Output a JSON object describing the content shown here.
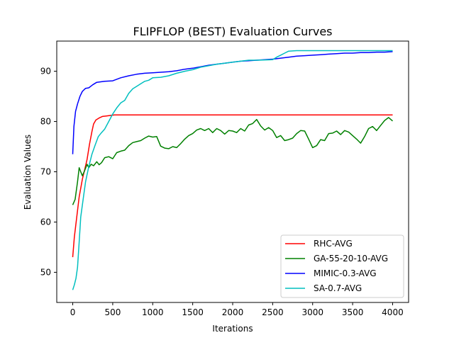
{
  "chart_data": {
    "type": "line",
    "title": "FLIPFLOP (BEST) Evaluation Curves",
    "xlabel": "Iterations",
    "ylabel": "Evaluation Values",
    "xlim": [
      -200,
      4200
    ],
    "ylim": [
      44,
      96
    ],
    "xticks": [
      0,
      500,
      1000,
      1500,
      2000,
      2500,
      3000,
      3500,
      4000
    ],
    "yticks": [
      50,
      60,
      70,
      80,
      90
    ],
    "legend_position": "bottom-right",
    "grid": false,
    "series": [
      {
        "name": "RHC-AVG",
        "color": "#ff0000",
        "points": [
          [
            0,
            53
          ],
          [
            20,
            57
          ],
          [
            50,
            61
          ],
          [
            80,
            65
          ],
          [
            120,
            68.5
          ],
          [
            150,
            70.5
          ],
          [
            180,
            72.5
          ],
          [
            210,
            75.5
          ],
          [
            240,
            78
          ],
          [
            260,
            79.5
          ],
          [
            290,
            80.3
          ],
          [
            330,
            80.7
          ],
          [
            370,
            81
          ],
          [
            420,
            81.1
          ],
          [
            470,
            81.2
          ],
          [
            520,
            81.3
          ],
          [
            4000,
            81.3
          ]
        ]
      },
      {
        "name": "GA-55-20-10-AVG",
        "color": "#008000",
        "points": [
          [
            0,
            63.4
          ],
          [
            30,
            64.5
          ],
          [
            60,
            68
          ],
          [
            80,
            70.8
          ],
          [
            100,
            70
          ],
          [
            120,
            69.2
          ],
          [
            150,
            70.3
          ],
          [
            180,
            71.5
          ],
          [
            200,
            70.8
          ],
          [
            230,
            71.5
          ],
          [
            260,
            71.2
          ],
          [
            300,
            72
          ],
          [
            330,
            71.4
          ],
          [
            360,
            71.8
          ],
          [
            400,
            72.8
          ],
          [
            450,
            73
          ],
          [
            500,
            72.6
          ],
          [
            550,
            73.8
          ],
          [
            600,
            74.1
          ],
          [
            650,
            74.3
          ],
          [
            700,
            75.2
          ],
          [
            750,
            75.8
          ],
          [
            800,
            76
          ],
          [
            850,
            76.2
          ],
          [
            900,
            76.7
          ],
          [
            950,
            77.1
          ],
          [
            1000,
            76.9
          ],
          [
            1050,
            77
          ],
          [
            1100,
            75.1
          ],
          [
            1150,
            74.7
          ],
          [
            1200,
            74.6
          ],
          [
            1250,
            75
          ],
          [
            1300,
            74.8
          ],
          [
            1350,
            75.6
          ],
          [
            1400,
            76.5
          ],
          [
            1450,
            77.2
          ],
          [
            1500,
            77.6
          ],
          [
            1550,
            78.3
          ],
          [
            1600,
            78.6
          ],
          [
            1650,
            78.2
          ],
          [
            1700,
            78.6
          ],
          [
            1750,
            77.8
          ],
          [
            1800,
            78.6
          ],
          [
            1850,
            78.2
          ],
          [
            1900,
            77.5
          ],
          [
            1950,
            78.2
          ],
          [
            2000,
            78.1
          ],
          [
            2050,
            77.8
          ],
          [
            2100,
            78.6
          ],
          [
            2150,
            78.1
          ],
          [
            2200,
            79.3
          ],
          [
            2250,
            79.6
          ],
          [
            2300,
            80.4
          ],
          [
            2350,
            79.1
          ],
          [
            2400,
            78.3
          ],
          [
            2450,
            78.8
          ],
          [
            2500,
            78.2
          ],
          [
            2550,
            76.8
          ],
          [
            2600,
            77.2
          ],
          [
            2650,
            76.2
          ],
          [
            2700,
            76.4
          ],
          [
            2750,
            76.7
          ],
          [
            2800,
            77.6
          ],
          [
            2850,
            78.2
          ],
          [
            2900,
            78.1
          ],
          [
            2950,
            76.5
          ],
          [
            3000,
            74.8
          ],
          [
            3050,
            75.2
          ],
          [
            3100,
            76.4
          ],
          [
            3150,
            76.2
          ],
          [
            3200,
            77.6
          ],
          [
            3250,
            77.7
          ],
          [
            3300,
            78.1
          ],
          [
            3350,
            77.4
          ],
          [
            3400,
            78.2
          ],
          [
            3450,
            77.9
          ],
          [
            3500,
            77.2
          ],
          [
            3550,
            76.5
          ],
          [
            3600,
            75.7
          ],
          [
            3650,
            77
          ],
          [
            3700,
            78.6
          ],
          [
            3750,
            79
          ],
          [
            3800,
            78.2
          ],
          [
            3850,
            79.2
          ],
          [
            3900,
            80.2
          ],
          [
            3950,
            80.8
          ],
          [
            4000,
            80.1
          ]
        ]
      },
      {
        "name": "MIMIC-0.3-AVG",
        "color": "#0000ff",
        "points": [
          [
            0,
            73.5
          ],
          [
            15,
            79
          ],
          [
            35,
            82
          ],
          [
            60,
            83.5
          ],
          [
            90,
            85
          ],
          [
            120,
            86
          ],
          [
            160,
            86.6
          ],
          [
            200,
            86.7
          ],
          [
            250,
            87.3
          ],
          [
            300,
            87.8
          ],
          [
            350,
            87.9
          ],
          [
            400,
            88
          ],
          [
            500,
            88.1
          ],
          [
            600,
            88.7
          ],
          [
            700,
            89.1
          ],
          [
            800,
            89.4
          ],
          [
            900,
            89.6
          ],
          [
            1000,
            89.7
          ],
          [
            1100,
            89.8
          ],
          [
            1200,
            89.9
          ],
          [
            1300,
            90.1
          ],
          [
            1400,
            90.4
          ],
          [
            1500,
            90.6
          ],
          [
            1600,
            90.9
          ],
          [
            1700,
            91.2
          ],
          [
            1800,
            91.4
          ],
          [
            1900,
            91.6
          ],
          [
            2000,
            91.8
          ],
          [
            2100,
            92
          ],
          [
            2200,
            92.1
          ],
          [
            2300,
            92.2
          ],
          [
            2400,
            92.3
          ],
          [
            2500,
            92.4
          ],
          [
            2600,
            92.6
          ],
          [
            2700,
            92.8
          ],
          [
            2800,
            93
          ],
          [
            2900,
            93.1
          ],
          [
            3000,
            93.2
          ],
          [
            3100,
            93.3
          ],
          [
            3200,
            93.4
          ],
          [
            3300,
            93.5
          ],
          [
            3400,
            93.6
          ],
          [
            3500,
            93.6
          ],
          [
            3600,
            93.7
          ],
          [
            3700,
            93.7
          ],
          [
            3800,
            93.8
          ],
          [
            3900,
            93.8
          ],
          [
            4000,
            93.9
          ]
        ]
      },
      {
        "name": "SA-0.7-AVG",
        "color": "#00bfbf",
        "points": [
          [
            0,
            46.5
          ],
          [
            20,
            47.5
          ],
          [
            40,
            48.8
          ],
          [
            60,
            51
          ],
          [
            80,
            56
          ],
          [
            100,
            61
          ],
          [
            130,
            64.5
          ],
          [
            160,
            68
          ],
          [
            200,
            71
          ],
          [
            240,
            73.5
          ],
          [
            280,
            75.3
          ],
          [
            320,
            77
          ],
          [
            360,
            77.8
          ],
          [
            400,
            78.5
          ],
          [
            450,
            80
          ],
          [
            500,
            81.5
          ],
          [
            550,
            82.7
          ],
          [
            600,
            83.7
          ],
          [
            650,
            84.2
          ],
          [
            700,
            85.6
          ],
          [
            750,
            86.5
          ],
          [
            800,
            87
          ],
          [
            850,
            87.5
          ],
          [
            900,
            88
          ],
          [
            950,
            88.2
          ],
          [
            1000,
            88.7
          ],
          [
            1100,
            88.8
          ],
          [
            1200,
            89.1
          ],
          [
            1300,
            89.6
          ],
          [
            1400,
            90
          ],
          [
            1500,
            90.3
          ],
          [
            1600,
            90.8
          ],
          [
            1700,
            91.1
          ],
          [
            1800,
            91.4
          ],
          [
            1900,
            91.6
          ],
          [
            2000,
            91.8
          ],
          [
            2100,
            92
          ],
          [
            2200,
            92.2
          ],
          [
            2300,
            92.2
          ],
          [
            2500,
            92.3
          ],
          [
            2550,
            92.8
          ],
          [
            2600,
            93.2
          ],
          [
            2650,
            93.6
          ],
          [
            2700,
            94
          ],
          [
            2800,
            94.1
          ],
          [
            4000,
            94.1
          ]
        ]
      }
    ]
  }
}
